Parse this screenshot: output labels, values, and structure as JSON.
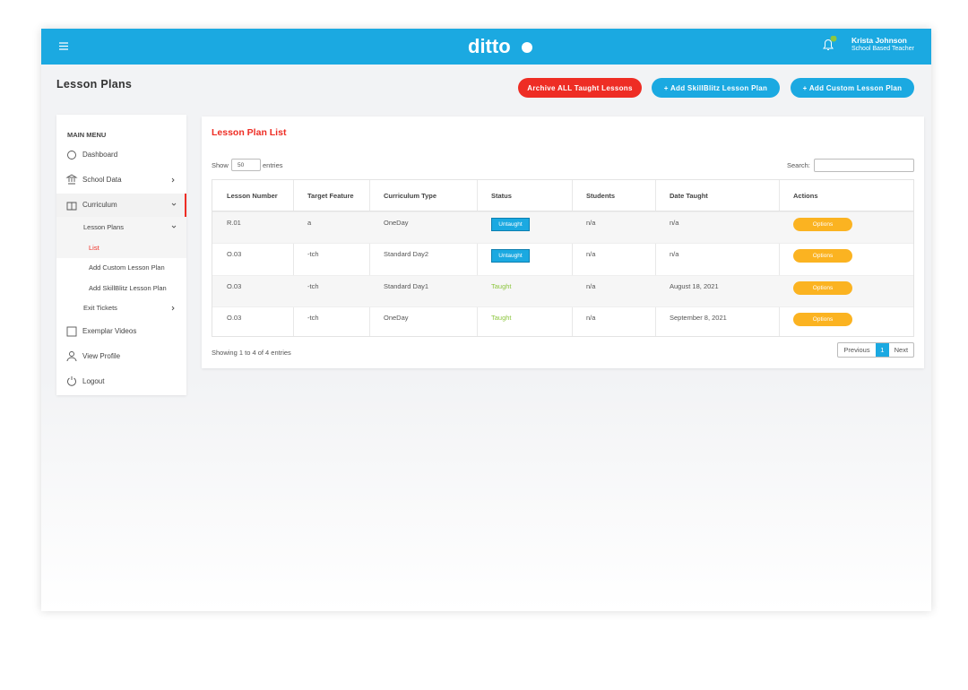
{
  "header": {
    "logo": "ditto",
    "user_name": "Krista Johnson",
    "user_role": "School Based Teacher"
  },
  "page_title": "Lesson Plans",
  "buttons": [
    "Archive ALL Taught Lessons",
    "+ Add SkillBlitz Lesson Plan",
    "+ Add Custom Lesson Plan"
  ],
  "sidebar": {
    "heading": "MAIN MENU",
    "items": [
      "Dashboard",
      "School Data",
      "Curriculum",
      "Lesson Plans",
      "List",
      "Add Custom Lesson Plan",
      "Add SkillBlitz Lesson Plan",
      "Exit Tickets",
      "Exemplar Videos",
      "View Profile",
      "Logout"
    ]
  },
  "panel": {
    "title": "Lesson Plan List",
    "show_label": "Show",
    "page_size": "50",
    "entries_label": "entries",
    "search_label": "Search:",
    "table": {
      "columns": [
        "Lesson Number",
        "Target Feature",
        "Curriculum Type",
        "Status",
        "Students",
        "Date Taught",
        "Actions"
      ],
      "rows": [
        [
          "R.01",
          "a",
          "OneDay",
          "Untaught",
          "n/a",
          "n/a",
          "Options"
        ],
        [
          "O.03",
          "-tch",
          "Standard Day2",
          "Untaught",
          "n/a",
          "n/a",
          "Options"
        ],
        [
          "O.03",
          "-tch",
          "Standard Day1",
          "Taught",
          "n/a",
          "August 18, 2021",
          "Options"
        ],
        [
          "O.03",
          "-tch",
          "OneDay",
          "Taught",
          "n/a",
          "September 8, 2021",
          "Options"
        ]
      ],
      "status_badge": [
        true,
        true,
        false,
        false
      ]
    },
    "summary": "Showing 1 to 4 of 4 entries",
    "pagination": [
      "Previous",
      "1",
      "Next"
    ]
  }
}
